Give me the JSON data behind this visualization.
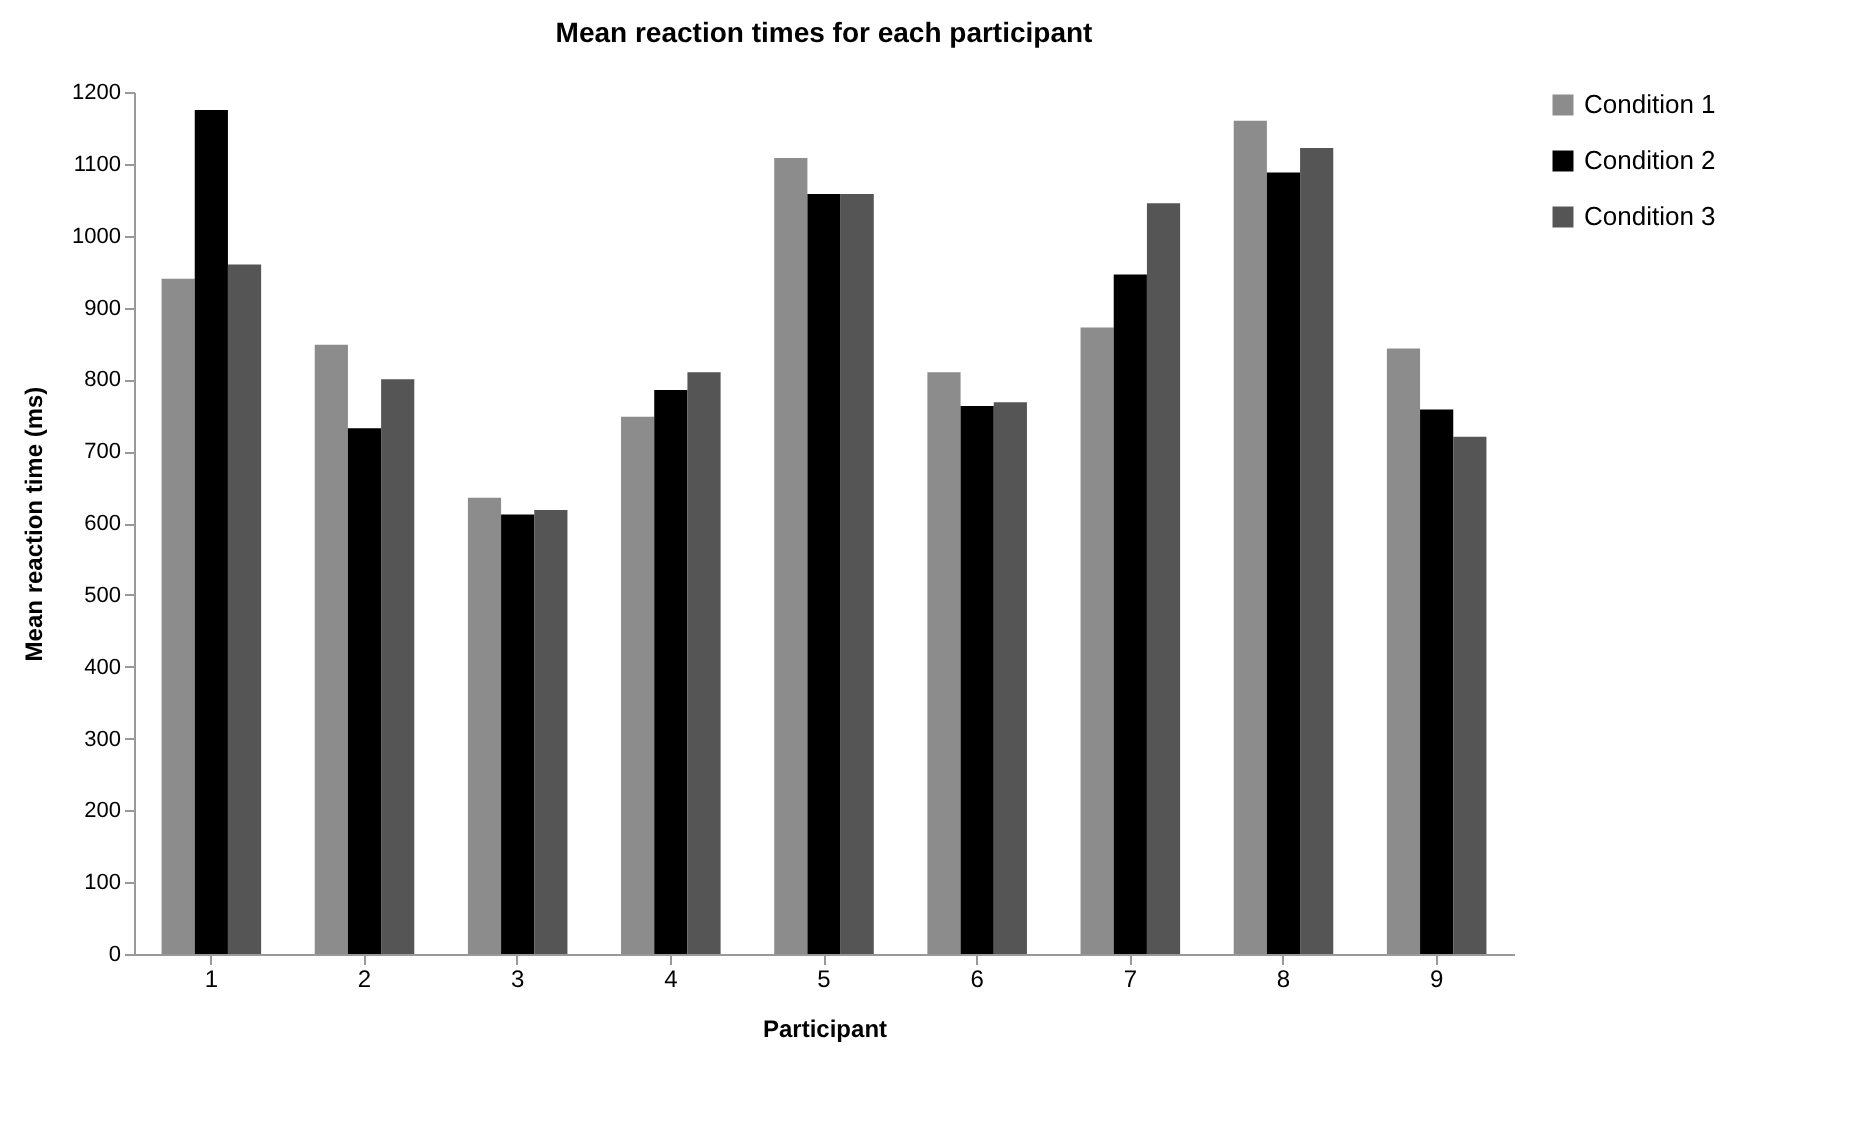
{
  "chart_data": {
    "type": "bar",
    "title": "Mean reaction times for each participant",
    "xlabel": "Participant",
    "ylabel": "Mean reaction time (ms)",
    "categories": [
      "1",
      "2",
      "3",
      "4",
      "5",
      "6",
      "7",
      "8",
      "9"
    ],
    "series": [
      {
        "name": "Condition 1",
        "color": "#8c8c8c",
        "values": [
          940,
          848,
          635,
          748,
          1108,
          810,
          872,
          1160,
          843
        ]
      },
      {
        "name": "Condition 2",
        "color": "#000000",
        "values": [
          1175,
          732,
          612,
          785,
          1058,
          763,
          946,
          1088,
          758
        ]
      },
      {
        "name": "Condition 3",
        "color": "#555555",
        "values": [
          960,
          800,
          618,
          810,
          1058,
          768,
          1045,
          1122,
          720
        ]
      }
    ],
    "ylim": [
      0,
      1200
    ],
    "yticks": [
      0,
      100,
      200,
      300,
      400,
      500,
      600,
      700,
      800,
      900,
      1000,
      1100,
      1200
    ],
    "grid": false,
    "legend": "right"
  }
}
